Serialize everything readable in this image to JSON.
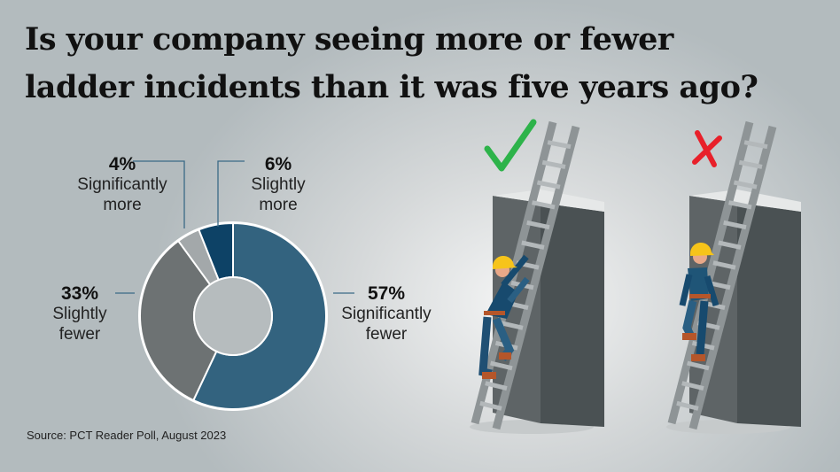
{
  "chart_data": {
    "type": "pie",
    "variant": "donut",
    "title": "Is your company seeing more or fewer ladder incidents than it was five years ago?",
    "slices": [
      {
        "label": "Significantly fewer",
        "value": 57,
        "display": "57%",
        "color": "#33637f"
      },
      {
        "label": "Slightly fewer",
        "value": 33,
        "display": "33%",
        "color": "#6d7273"
      },
      {
        "label": "Significantly more",
        "value": 4,
        "display": "4%",
        "color": "#a3a8aa"
      },
      {
        "label": "Slightly more",
        "value": 6,
        "display": "6%",
        "color": "#0d4266"
      }
    ],
    "source": "Source: PCT Reader Poll, August 2023"
  },
  "illustration": {
    "correct_icon": "check-icon",
    "wrong_icon": "x-icon",
    "check_color": "#2db34a",
    "x_color": "#e8202a"
  }
}
